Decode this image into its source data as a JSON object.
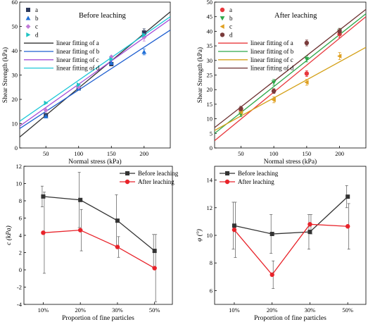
{
  "chart_data": [
    {
      "type": "scatter",
      "id": "p1",
      "title": "Before leaching",
      "xlabel": "Normal stress (kPa)",
      "ylabel": "Shear Strength (kPa)",
      "xlim": [
        10,
        240
      ],
      "ylim": [
        0,
        60
      ],
      "xticks": [
        50,
        100,
        150,
        200
      ],
      "yticks": [
        0,
        10,
        20,
        30,
        40,
        50,
        60
      ],
      "legend_position": "top-left",
      "series": [
        {
          "name": "a",
          "marker": "square",
          "color": "#2e3a5c",
          "x": [
            50,
            100,
            150,
            200
          ],
          "y": [
            13.5,
            24.5,
            34.5,
            47.5
          ],
          "err": [
            0,
            0,
            0,
            1.5
          ]
        },
        {
          "name": "b",
          "marker": "triangle-up",
          "color": "#1f6fd8",
          "x": [
            50,
            100,
            150,
            200
          ],
          "y": [
            13,
            24.5,
            35,
            39.5
          ],
          "err": [
            0,
            0,
            0,
            1.2
          ]
        },
        {
          "name": "c",
          "marker": "diamond",
          "color": "#c07ad8",
          "x": [
            50,
            100,
            150,
            200
          ],
          "y": [
            15.5,
            25,
            37.5,
            45.5
          ],
          "err": [
            0,
            0,
            0,
            1.5
          ]
        },
        {
          "name": "d",
          "marker": "triangle-right",
          "color": "#1fc4c4",
          "x": [
            50,
            100,
            150,
            200
          ],
          "y": [
            18.5,
            26,
            36.5,
            46.5
          ],
          "err": [
            0,
            0,
            0,
            0
          ]
        }
      ],
      "fits": [
        {
          "name": "linear fitting of a",
          "color": "#333333",
          "x": [
            10,
            240
          ],
          "y": [
            4.5,
            56
          ]
        },
        {
          "name": "linear fitting of b",
          "color": "#1f5fd0",
          "x": [
            10,
            240
          ],
          "y": [
            8,
            48.5
          ]
        },
        {
          "name": "linear fitting of c",
          "color": "#a64fd8",
          "x": [
            10,
            240
          ],
          "y": [
            9,
            53
          ]
        },
        {
          "name": "linear fitting of d",
          "color": "#1fc8d8",
          "x": [
            10,
            240
          ],
          "y": [
            11,
            54
          ]
        }
      ]
    },
    {
      "type": "scatter",
      "id": "p2",
      "title": "After leaching",
      "xlabel": "Normal stress (kPa)",
      "ylabel": "Shear Strength (kPa)",
      "xlim": [
        10,
        240
      ],
      "ylim": [
        0,
        50
      ],
      "xticks": [
        50,
        100,
        150,
        200
      ],
      "yticks": [
        0,
        5,
        10,
        15,
        20,
        25,
        30,
        35,
        40,
        45,
        50
      ],
      "legend_position": "top-left",
      "series": [
        {
          "name": "a",
          "marker": "circle",
          "color": "#e8383d",
          "x": [
            50,
            100,
            150,
            200
          ],
          "y": [
            13,
            19.5,
            25.5,
            39
          ],
          "err": [
            0.8,
            0.8,
            1,
            1.2
          ]
        },
        {
          "name": "b",
          "marker": "triangle-down",
          "color": "#2ea84a",
          "x": [
            50,
            100,
            150,
            200
          ],
          "y": [
            11.5,
            22.5,
            30.5,
            40
          ],
          "err": [
            0.8,
            1,
            1,
            1
          ]
        },
        {
          "name": "c",
          "marker": "triangle-left",
          "color": "#e0a020",
          "x": [
            50,
            100,
            150,
            200
          ],
          "y": [
            12.5,
            16.5,
            22.5,
            31.5
          ],
          "err": [
            0.8,
            1,
            1,
            1.2
          ]
        },
        {
          "name": "d",
          "marker": "circle",
          "color": "#7a3b3b",
          "x": [
            50,
            100,
            150,
            200
          ],
          "y": [
            13.5,
            19.5,
            36,
            40
          ],
          "err": [
            0.8,
            0.8,
            1,
            1
          ]
        }
      ],
      "fits": [
        {
          "name": "linear fitting of a",
          "color": "#e8383d",
          "x": [
            10,
            240
          ],
          "y": [
            2.5,
            45
          ]
        },
        {
          "name": "linear fitting of b",
          "color": "#2ea84a",
          "x": [
            10,
            240
          ],
          "y": [
            5,
            46
          ]
        },
        {
          "name": "linear fitting of c",
          "color": "#d4a017",
          "x": [
            10,
            240
          ],
          "y": [
            6,
            34.5
          ]
        },
        {
          "name": "linear fitting of d",
          "color": "#6b2e2e",
          "x": [
            10,
            240
          ],
          "y": [
            7,
            47.5
          ]
        }
      ]
    },
    {
      "type": "line",
      "id": "p3",
      "xlabel": "Proportion of fine particles",
      "ylabel": "c (kPa)",
      "categories": [
        "10%",
        "20%",
        "30%",
        "50%"
      ],
      "ylim": [
        -4,
        12
      ],
      "yticks": [
        -4,
        -2,
        0,
        2,
        4,
        6,
        8,
        10,
        12
      ],
      "legend_position": "top-right",
      "series": [
        {
          "name": "Before leaching",
          "marker": "square",
          "color": "#333333",
          "values": [
            8.5,
            8.1,
            5.7,
            2.2
          ],
          "err": [
            1.2,
            3.2,
            3.0,
            1.9
          ]
        },
        {
          "name": "After leaching",
          "marker": "circle",
          "color": "#e8232a",
          "values": [
            4.3,
            4.6,
            2.65,
            0.2
          ],
          "err": [
            4.7,
            2.4,
            1.2,
            3.9
          ]
        }
      ]
    },
    {
      "type": "line",
      "id": "p4",
      "xlabel": "Proportion of fine particles",
      "ylabel": "φ (°)",
      "categories": [
        "10%",
        "20%",
        "30%",
        "50%"
      ],
      "ylim": [
        5,
        15
      ],
      "yticks": [
        6,
        8,
        10,
        12,
        14
      ],
      "legend_position": "top-left",
      "series": [
        {
          "name": "Before leaching",
          "marker": "square",
          "color": "#333333",
          "values": [
            10.7,
            10.1,
            10.25,
            12.8
          ],
          "err": [
            1.7,
            1.4,
            1.25,
            0.8
          ]
        },
        {
          "name": "After leaching",
          "marker": "circle",
          "color": "#e8232a",
          "values": [
            10.4,
            7.15,
            10.8,
            10.65
          ],
          "err": [
            2.0,
            1.0,
            0.7,
            1.65
          ]
        }
      ]
    }
  ]
}
